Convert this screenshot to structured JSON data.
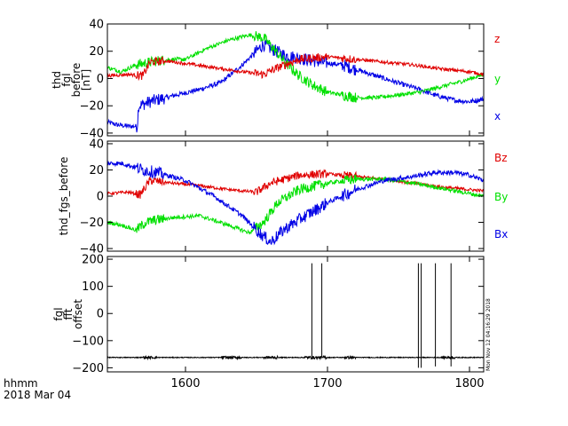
{
  "footer": {
    "line1": "hhmm",
    "line2": "2018 Mar 04"
  },
  "timestamp": "Mon Nov 12 04:16:29 2018",
  "colors": {
    "red": "#e00000",
    "green": "#00e000",
    "blue": "#0000e6",
    "black": "#000000"
  },
  "chart_data": [
    {
      "type": "line",
      "panel": "top",
      "ylabel_lines": [
        "thd",
        "fgl",
        "before",
        "[nT]"
      ],
      "xlim": [
        1545,
        1810
      ],
      "ylim": [
        -42,
        40
      ],
      "yticks": [
        40,
        20,
        0,
        -20,
        -40
      ],
      "ytick_labels": [
        "40",
        "20",
        "0",
        "−20",
        "−40"
      ],
      "series": [
        {
          "name": "x",
          "color": "blue",
          "noise": 1.8,
          "x": [
            1545,
            1552,
            1560,
            1566,
            1567,
            1575,
            1590,
            1610,
            1625,
            1640,
            1648,
            1655,
            1660,
            1670,
            1680,
            1695,
            1710,
            1725,
            1740,
            1752,
            1765,
            1775,
            1782,
            1790,
            1800,
            1810
          ],
          "y": [
            -32,
            -34,
            -35,
            -35,
            -20,
            -17,
            -13,
            -8,
            -3,
            10,
            18,
            25,
            22,
            17,
            15,
            12,
            10,
            5,
            0,
            -4,
            -8,
            -12,
            -14,
            -16,
            -17,
            -15
          ]
        },
        {
          "name": "y",
          "color": "green",
          "noise": 1.5,
          "x": [
            1545,
            1555,
            1565,
            1575,
            1580,
            1590,
            1600,
            1615,
            1630,
            1645,
            1655,
            1662,
            1670,
            1680,
            1690,
            1700,
            1720,
            1735,
            1750,
            1765,
            1780,
            1795,
            1810
          ],
          "y": [
            8,
            5,
            10,
            12,
            13,
            14,
            14,
            22,
            28,
            32,
            30,
            22,
            12,
            2,
            -5,
            -10,
            -14,
            -14,
            -12,
            -10,
            -6,
            -2,
            3
          ]
        },
        {
          "name": "z",
          "color": "red",
          "noise": 1.2,
          "x": [
            1545,
            1560,
            1570,
            1575,
            1585,
            1600,
            1620,
            1640,
            1655,
            1665,
            1680,
            1700,
            1720,
            1740,
            1760,
            1780,
            1800,
            1810
          ],
          "y": [
            2,
            3,
            2,
            12,
            13,
            11,
            8,
            5,
            3,
            8,
            14,
            16,
            14,
            12,
            10,
            7,
            5,
            3
          ]
        }
      ]
    },
    {
      "type": "line",
      "panel": "middle",
      "ylabel_lines": [
        "thd_fgs_before"
      ],
      "xlim": [
        1545,
        1810
      ],
      "ylim": [
        -42,
        42
      ],
      "yticks": [
        40,
        20,
        0,
        -20,
        -40
      ],
      "ytick_labels": [
        "40",
        "20",
        "0",
        "−20",
        "−40"
      ],
      "series": [
        {
          "name": "Bz",
          "color": "red",
          "noise": 1.2,
          "x": [
            1545,
            1560,
            1568,
            1575,
            1590,
            1610,
            1630,
            1650,
            1660,
            1680,
            1700,
            1720,
            1740,
            1760,
            1780,
            1800,
            1810
          ],
          "y": [
            2,
            3,
            1,
            12,
            10,
            8,
            5,
            3,
            10,
            16,
            17,
            15,
            13,
            10,
            7,
            5,
            4
          ]
        },
        {
          "name": "By",
          "color": "green",
          "noise": 1.5,
          "x": [
            1545,
            1555,
            1565,
            1572,
            1580,
            1595,
            1610,
            1630,
            1645,
            1655,
            1665,
            1680,
            1700,
            1720,
            1740,
            1760,
            1780,
            1800,
            1810
          ],
          "y": [
            -20,
            -22,
            -26,
            -20,
            -18,
            -16,
            -15,
            -22,
            -28,
            -20,
            -5,
            5,
            10,
            13,
            13,
            10,
            6,
            2,
            0
          ]
        },
        {
          "name": "Bx",
          "color": "blue",
          "noise": 1.8,
          "x": [
            1545,
            1555,
            1565,
            1570,
            1580,
            1600,
            1620,
            1640,
            1652,
            1660,
            1670,
            1680,
            1700,
            1720,
            1740,
            1760,
            1775,
            1790,
            1800,
            1810
          ],
          "y": [
            25,
            25,
            22,
            20,
            18,
            12,
            0,
            -15,
            -28,
            -35,
            -25,
            -18,
            -5,
            5,
            12,
            15,
            18,
            18,
            16,
            12
          ]
        }
      ]
    },
    {
      "type": "line",
      "panel": "bottom",
      "ylabel_lines": [
        "fgl",
        "fft",
        "offset"
      ],
      "xlim": [
        1545,
        1810
      ],
      "ylim": [
        -215,
        210
      ],
      "yticks": [
        200,
        100,
        0,
        -100,
        -200
      ],
      "ytick_labels": [
        "200",
        "100",
        "0",
        "−100",
        "−200"
      ],
      "xticks": [
        1600,
        1700,
        1800
      ],
      "xtick_labels": [
        "1600",
        "1700",
        "1800"
      ],
      "baseline": -162,
      "spikes": [
        {
          "x": 1689,
          "low": -162,
          "high": 185
        },
        {
          "x": 1696,
          "low": -162,
          "high": 185
        },
        {
          "x": 1764,
          "low": -200,
          "high": 185
        },
        {
          "x": 1766,
          "low": -200,
          "high": 185
        },
        {
          "x": 1776,
          "low": -195,
          "high": 185
        },
        {
          "x": 1787,
          "low": -195,
          "high": 185
        }
      ],
      "series": [
        {
          "name": "offset",
          "color": "black"
        }
      ]
    }
  ]
}
